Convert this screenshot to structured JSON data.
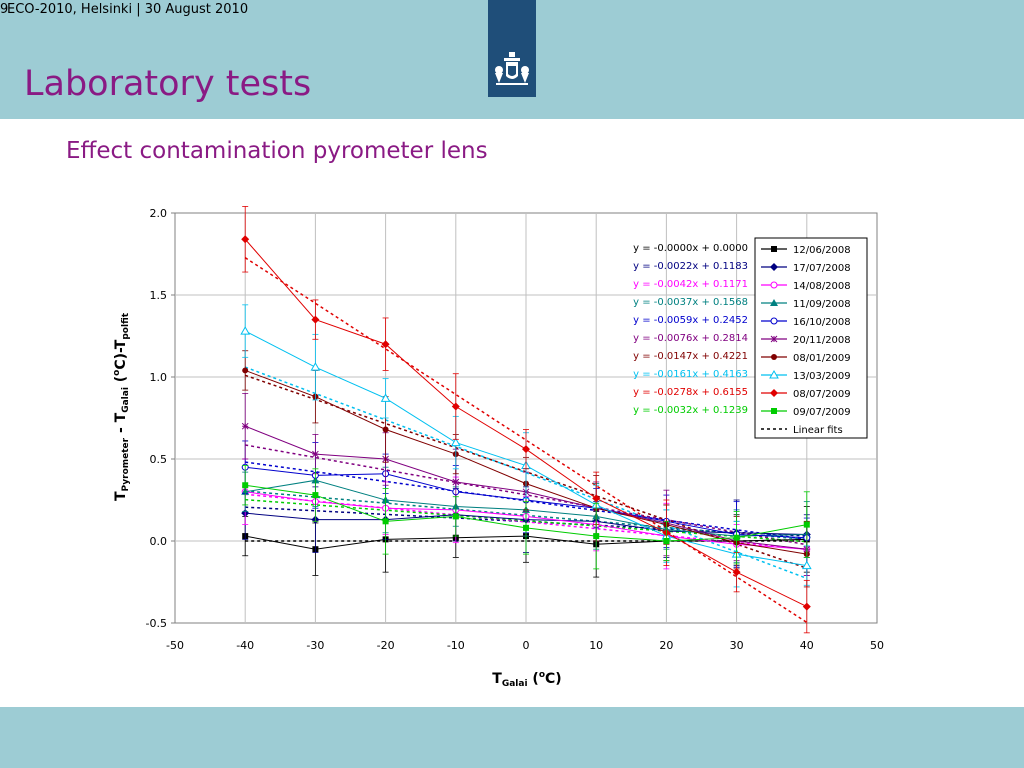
{
  "header": {
    "slide_number": "9",
    "conference": "ECO-2010, Helsinki | 30 August 2010",
    "title": "Laboratory tests",
    "subtitle": "Effect contamination pyrometer lens"
  },
  "colors": {
    "band": "#9dccd4",
    "title": "#8a1a84",
    "logo": "#1f4e79"
  },
  "chart_data": {
    "type": "line",
    "xlabel": {
      "main": "T",
      "sub": "Galai",
      "tail": " (",
      "sup": "o",
      "end": "C)"
    },
    "ylabel": {
      "p1": "T",
      "s1": "Pyrometer",
      "p2": " - T",
      "s2": "Galai",
      "p3": " (",
      "sup": "o",
      "p4": "C)-T",
      "s3": "polfit"
    },
    "xlim": [
      -50,
      50
    ],
    "ylim": [
      -0.5,
      2.0
    ],
    "xticks": [
      "-50",
      "-40",
      "-30",
      "-20",
      "-10",
      "0",
      "10",
      "20",
      "30",
      "40",
      "50"
    ],
    "yticks": [
      "2.0",
      "1.5",
      "1.0",
      "0.5",
      "0.0",
      "-0.5"
    ],
    "grid": true,
    "legend_position": "top-right",
    "x": [
      -40,
      -30,
      -20,
      -10,
      0,
      10,
      20,
      30,
      40
    ],
    "series": [
      {
        "name": "12/06/2008",
        "color": "#000000",
        "marker": "square",
        "values": [
          0.03,
          -0.05,
          0.01,
          0.02,
          0.03,
          -0.02,
          0.0,
          0.0,
          0.01
        ],
        "equation": "y = -0.0000x + 0.0000"
      },
      {
        "name": "17/07/2008",
        "color": "#000080",
        "marker": "diamond",
        "values": [
          0.17,
          0.13,
          0.13,
          0.16,
          0.13,
          0.12,
          0.06,
          0.05,
          0.04
        ],
        "equation": "y = -0.0022x + 0.1183"
      },
      {
        "name": "14/08/2008",
        "color": "#ff00ff",
        "marker": "circle-open",
        "values": [
          0.3,
          0.24,
          0.2,
          0.19,
          0.15,
          0.1,
          0.03,
          -0.02,
          -0.05
        ],
        "equation": "y = -0.0042x + 0.1171"
      },
      {
        "name": "11/09/2008",
        "color": "#008080",
        "marker": "triangle",
        "values": [
          0.3,
          0.37,
          0.25,
          0.21,
          0.19,
          0.15,
          0.07,
          0.03,
          0.04
        ],
        "equation": "y = -0.0037x + 0.1568"
      },
      {
        "name": "16/10/2008",
        "color": "#0000cd",
        "marker": "circle-open",
        "values": [
          0.45,
          0.4,
          0.41,
          0.3,
          0.25,
          0.2,
          0.12,
          0.04,
          0.02
        ],
        "equation": "y = -0.0059x + 0.2452"
      },
      {
        "name": "20/11/2008",
        "color": "#800080",
        "marker": "star",
        "values": [
          0.7,
          0.53,
          0.5,
          0.36,
          0.3,
          0.2,
          0.11,
          0.0,
          -0.05
        ],
        "equation": "y = -0.0076x + 0.2814"
      },
      {
        "name": "08/01/2009",
        "color": "#800000",
        "marker": "circle",
        "values": [
          1.04,
          0.88,
          0.68,
          0.53,
          0.35,
          0.2,
          0.1,
          -0.01,
          -0.08
        ],
        "equation": "y = -0.0147x + 0.4221"
      },
      {
        "name": "13/03/2009",
        "color": "#00c0f0",
        "marker": "triangle-open",
        "values": [
          1.28,
          1.06,
          0.87,
          0.6,
          0.46,
          0.22,
          0.03,
          -0.08,
          -0.15
        ],
        "equation": "y = -0.0161x + 0.4163"
      },
      {
        "name": "08/07/2009",
        "color": "#e00000",
        "marker": "diamond",
        "values": [
          1.84,
          1.35,
          1.2,
          0.82,
          0.56,
          0.26,
          0.05,
          -0.19,
          -0.4
        ],
        "equation": "y = -0.0278x + 0.6155"
      },
      {
        "name": "09/07/2009",
        "color": "#00cc00",
        "marker": "square",
        "values": [
          0.34,
          0.28,
          0.12,
          0.15,
          0.08,
          0.03,
          0.0,
          0.02,
          0.1
        ],
        "equation": "y = -0.0032x + 0.1239"
      }
    ],
    "linear_fits_label": "Linear fits"
  }
}
